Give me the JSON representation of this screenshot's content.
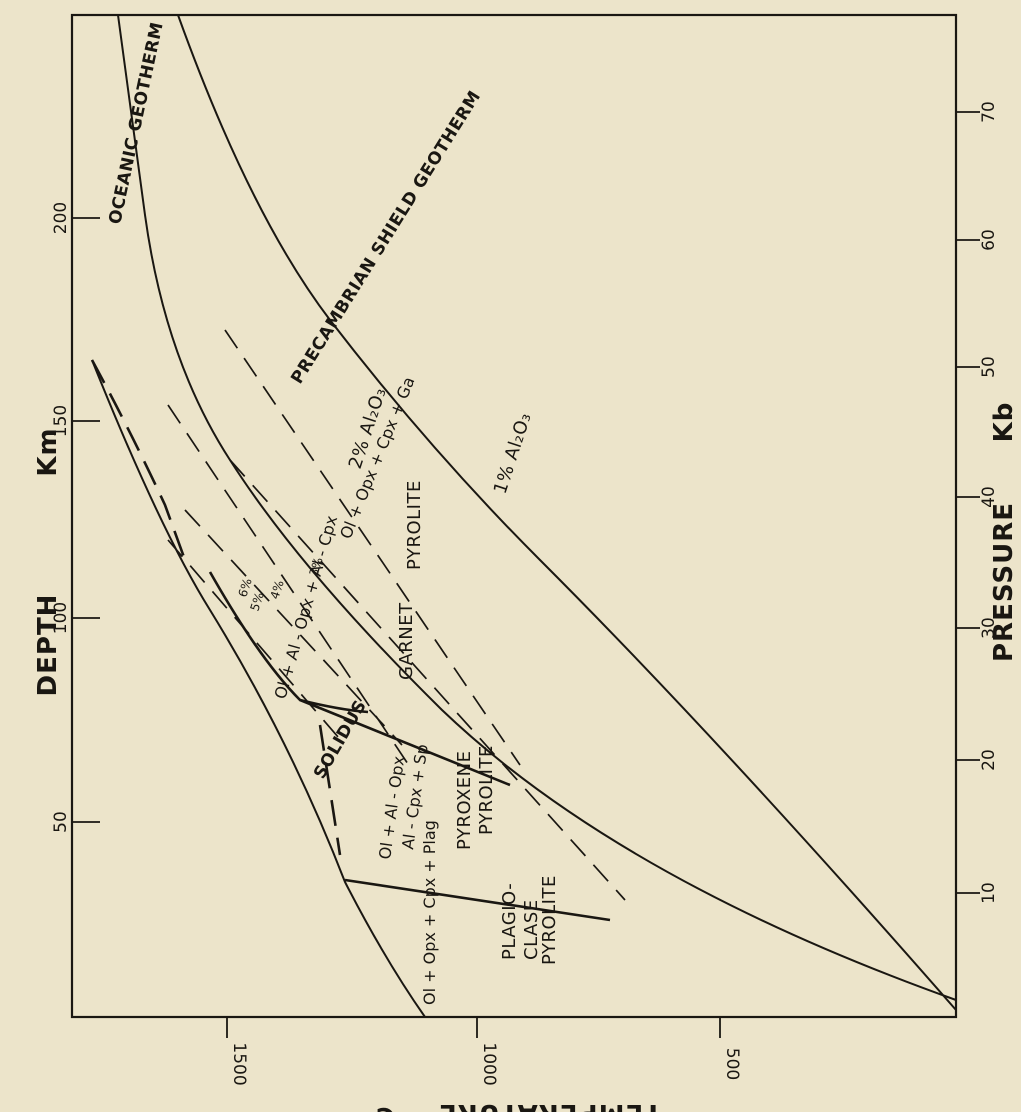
{
  "axes": {
    "depth_label": "DEPTH",
    "depth_unit": "Km",
    "pressure_label": "PRESSURE",
    "pressure_unit": "Kb",
    "temperature_label": "TEMPERATURE",
    "temperature_unit": "°C",
    "depth_ticks": [
      "50",
      "100",
      "150",
      "200"
    ],
    "pressure_ticks": [
      "10",
      "20",
      "30",
      "40",
      "50",
      "60",
      "70"
    ],
    "temperature_ticks": [
      "1500",
      "1000",
      "500"
    ]
  },
  "curves": {
    "oceanic": "OCEANIC GEOTHERM",
    "shield": "PRECAMBRIAN SHIELD GEOTHERM",
    "solidus": "SOLIDUS"
  },
  "fields": {
    "plagioclase_assemblage": "Ol + Opx + Cpx + Plag",
    "plagioclase_rock_1": "PLAGIO-",
    "plagioclase_rock_2": "CLASE",
    "plagioclase_rock_3": "PYROLITE",
    "pyroxene_assemblage_1": "Ol + Al - Opx",
    "pyroxene_assemblage_2": "Al - Cpx + Sp",
    "pyroxene_rock_1": "PYROXENE",
    "pyroxene_rock_2": "PYROLITE",
    "aluminous_assemblage": "Ol + Al - Opx + Al - Cpx",
    "garnet_assemblage": "Ol + Opx + Cpx + Ga",
    "garnet_rock_1": "GARNET",
    "garnet_rock_2": "PYROLITE"
  },
  "isopleths": {
    "one_pct": "1% Al₂O₃",
    "two_pct": "2% Al₂O₃",
    "three_pct": "3%",
    "four_pct": "4%",
    "five_pct": "5%",
    "six_pct": "6%"
  }
}
